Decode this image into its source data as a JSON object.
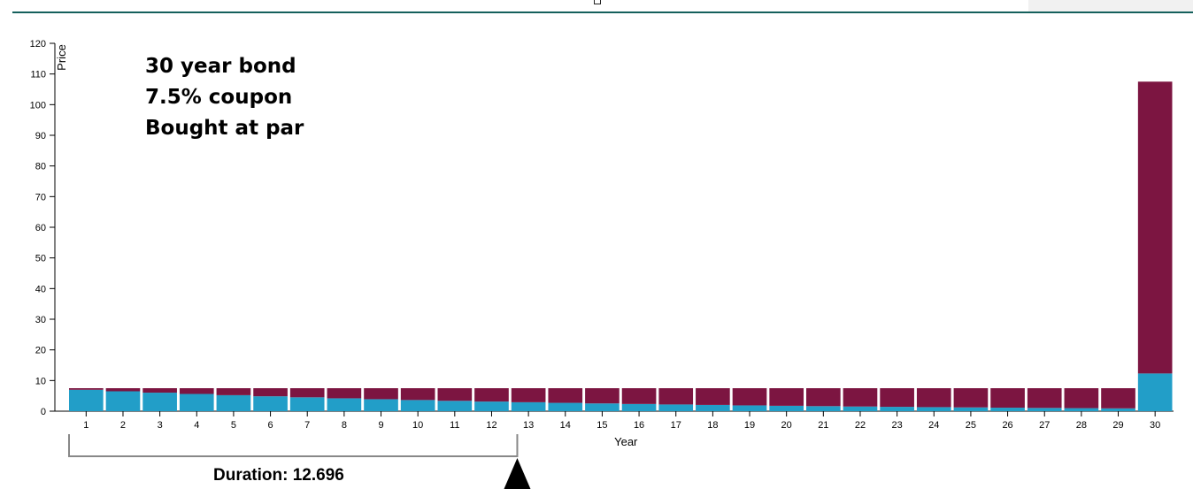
{
  "chart_data": {
    "type": "bar",
    "stacked": true,
    "title": [
      "30 year bond",
      "7.5% coupon",
      "Bought at par"
    ],
    "xlabel": "Year",
    "ylabel": "Price",
    "ylim": [
      0,
      120
    ],
    "yticks": [
      0,
      10,
      20,
      30,
      40,
      50,
      60,
      70,
      80,
      90,
      100,
      110,
      120
    ],
    "categories": [
      1,
      2,
      3,
      4,
      5,
      6,
      7,
      8,
      9,
      10,
      11,
      12,
      13,
      14,
      15,
      16,
      17,
      18,
      19,
      20,
      21,
      22,
      23,
      24,
      25,
      26,
      27,
      28,
      29,
      30
    ],
    "series": [
      {
        "color": "#229ec8",
        "values": [
          6.98,
          6.49,
          6.04,
          5.62,
          5.22,
          4.86,
          4.52,
          4.2,
          3.91,
          3.64,
          3.38,
          3.14,
          2.92,
          2.72,
          2.53,
          2.35,
          2.19,
          2.04,
          1.89,
          1.76,
          1.64,
          1.52,
          1.42,
          1.32,
          1.23,
          1.14,
          1.06,
          0.99,
          0.92,
          12.3
        ]
      },
      {
        "color": "#7c1541",
        "values": [
          0.52,
          1.01,
          1.46,
          1.88,
          2.28,
          2.64,
          2.98,
          3.3,
          3.59,
          3.86,
          4.12,
          4.36,
          4.58,
          4.78,
          4.97,
          5.15,
          5.31,
          5.46,
          5.61,
          5.74,
          5.86,
          5.98,
          6.08,
          6.18,
          6.27,
          6.36,
          6.44,
          6.51,
          6.58,
          95.2
        ]
      }
    ],
    "grid": false,
    "duration": {
      "label": "Duration: 12.696",
      "value": 12.696
    }
  }
}
